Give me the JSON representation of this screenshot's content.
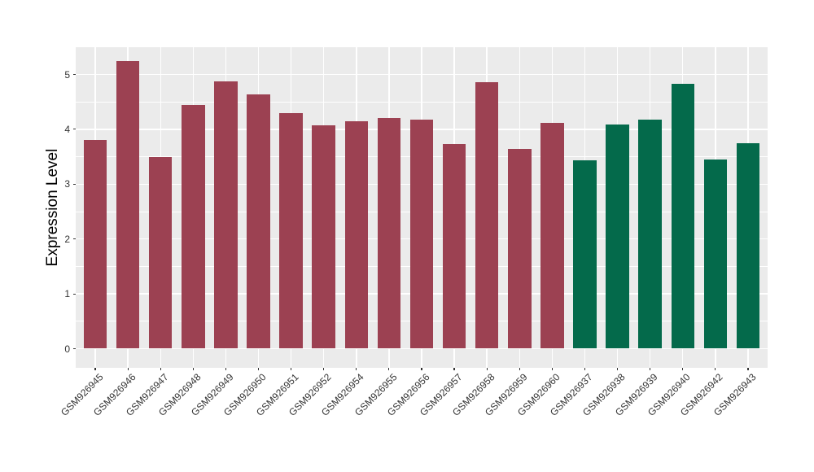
{
  "figure": {
    "background": "#ffffff",
    "panel_background": "#EBEBEB",
    "grid_color": "#ffffff",
    "tick_color": "#333333",
    "axis_text_color": "#333333",
    "axis_title_color": "#000000"
  },
  "chart_data": {
    "type": "bar",
    "title": "",
    "xlabel": "",
    "ylabel": "Expression Level",
    "ylim": [
      0,
      5.5
    ],
    "yticks": [
      0,
      1,
      2,
      3,
      4,
      5
    ],
    "grid": "major+minor horizontal, major vertical",
    "legend_position": "none",
    "categories": [
      "GSM926945",
      "GSM926946",
      "GSM926947",
      "GSM926948",
      "GSM926949",
      "GSM926950",
      "GSM926951",
      "GSM926952",
      "GSM926954",
      "GSM926955",
      "GSM926956",
      "GSM926957",
      "GSM926958",
      "GSM926959",
      "GSM926960",
      "GSM926937",
      "GSM926938",
      "GSM926939",
      "GSM926940",
      "GSM926942",
      "GSM926943"
    ],
    "values": [
      3.81,
      5.25,
      3.49,
      4.44,
      4.87,
      4.64,
      4.29,
      4.07,
      4.14,
      4.2,
      4.18,
      3.73,
      4.86,
      3.64,
      4.12,
      3.44,
      4.09,
      4.18,
      4.83,
      3.45,
      3.74
    ],
    "bar_color_groups": [
      "maroon",
      "maroon",
      "maroon",
      "maroon",
      "maroon",
      "maroon",
      "maroon",
      "maroon",
      "maroon",
      "maroon",
      "maroon",
      "maroon",
      "maroon",
      "maroon",
      "maroon",
      "green",
      "green",
      "green",
      "green",
      "green",
      "green"
    ],
    "group_colors": {
      "maroon": "#9C4152",
      "green": "#046A4B"
    }
  }
}
